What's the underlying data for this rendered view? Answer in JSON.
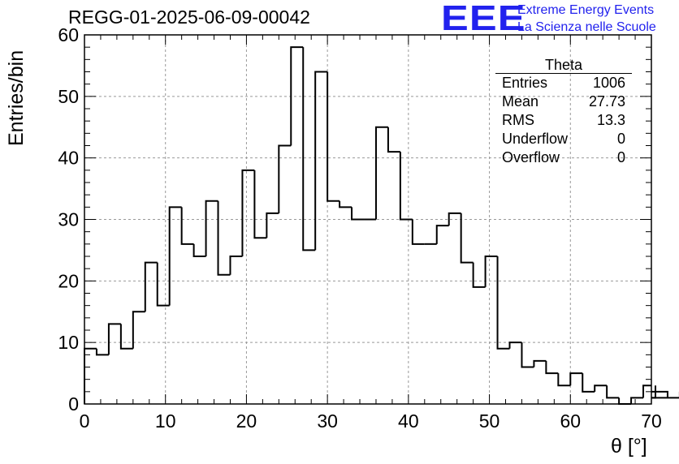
{
  "title": "REGG-01-2025-06-09-00042",
  "logo": {
    "text": "EEE",
    "line1": "Extreme Energy Events",
    "line2": "La Scienza nelle Scuole",
    "color": "#2222ee"
  },
  "stats": {
    "name": "Theta",
    "rows": [
      {
        "label": "Entries",
        "value": "1006"
      },
      {
        "label": "Mean",
        "value": "27.73"
      },
      {
        "label": "RMS",
        "value": "13.3"
      },
      {
        "label": "Underflow",
        "value": "0"
      },
      {
        "label": "Overflow",
        "value": "0"
      }
    ]
  },
  "chart_data": {
    "type": "bar",
    "histogram": true,
    "title": "REGG-01-2025-06-09-00042",
    "xlabel": "θ [°]",
    "ylabel": "Entries/bin",
    "xlim": [
      0,
      70
    ],
    "ylim": [
      0,
      60
    ],
    "bin_width": 1.5,
    "bin_edges_start": 0,
    "values": [
      9,
      8,
      13,
      9,
      15,
      23,
      16,
      32,
      26,
      24,
      33,
      21,
      24,
      38,
      27,
      31,
      42,
      58,
      25,
      54,
      33,
      32,
      30,
      30,
      45,
      41,
      30,
      26,
      26,
      29,
      31,
      23,
      19,
      24,
      9,
      10,
      6,
      7,
      5,
      3,
      5,
      2,
      3,
      1,
      0,
      1,
      3,
      1,
      2,
      1
    ],
    "x_ticks": [
      0,
      10,
      20,
      30,
      40,
      50,
      60,
      70
    ],
    "y_ticks": [
      0,
      10,
      20,
      30,
      40,
      50,
      60
    ],
    "grid": true,
    "line_color": "#000000"
  }
}
